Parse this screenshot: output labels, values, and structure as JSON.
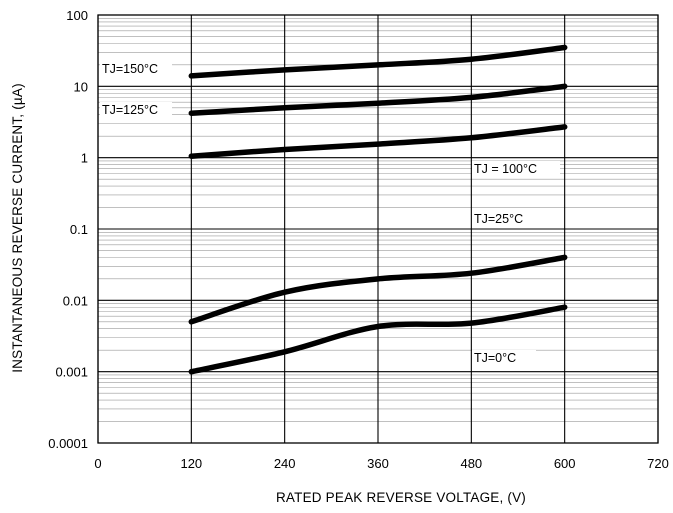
{
  "chart_data": {
    "type": "line",
    "xlabel": "RATED PEAK REVERSE VOLTAGE, (V)",
    "ylabel": "INSTANTANEOUS REVERSE CURRENT, (µA)",
    "xlim": [
      0,
      720
    ],
    "ylim": [
      0.0001,
      100
    ],
    "yscale": "log",
    "grid": true,
    "xticks": [
      0,
      120,
      240,
      360,
      480,
      600,
      720
    ],
    "xtick_labels": [
      "0",
      "120",
      "240",
      "360",
      "480",
      "600",
      "720"
    ],
    "yticks": [
      0.0001,
      0.001,
      0.01,
      0.1,
      1,
      10,
      100
    ],
    "ytick_labels": [
      "0.0001",
      "0.001",
      "0.01",
      "0.1",
      "1",
      "10",
      "100"
    ],
    "series": [
      {
        "name": "TJ=150°C",
        "x": [
          120,
          240,
          360,
          480,
          600
        ],
        "y": [
          14,
          17,
          20,
          24,
          35
        ]
      },
      {
        "name": "TJ=125°C",
        "x": [
          120,
          240,
          360,
          480,
          600
        ],
        "y": [
          4.2,
          5.0,
          5.8,
          7.0,
          10
        ]
      },
      {
        "name": "TJ = 100°C",
        "x": [
          120,
          240,
          360,
          480,
          600
        ],
        "y": [
          1.05,
          1.3,
          1.55,
          1.9,
          2.7
        ]
      },
      {
        "name": "TJ=25°C",
        "x": [
          120,
          240,
          360,
          480,
          600
        ],
        "y": [
          0.005,
          0.013,
          0.02,
          0.024,
          0.04
        ]
      },
      {
        "name": "TJ=0°C",
        "x": [
          120,
          240,
          360,
          480,
          600
        ],
        "y": [
          0.001,
          0.0019,
          0.0043,
          0.0048,
          0.008
        ]
      }
    ],
    "annotations": [
      {
        "text": "TJ=150°C",
        "series": 0
      },
      {
        "text": "TJ=125°C",
        "series": 1
      },
      {
        "text": "TJ = 100°C",
        "series": 2
      },
      {
        "text": "TJ=25°C",
        "series": 3
      },
      {
        "text": "TJ=0°C",
        "series": 4
      }
    ]
  }
}
